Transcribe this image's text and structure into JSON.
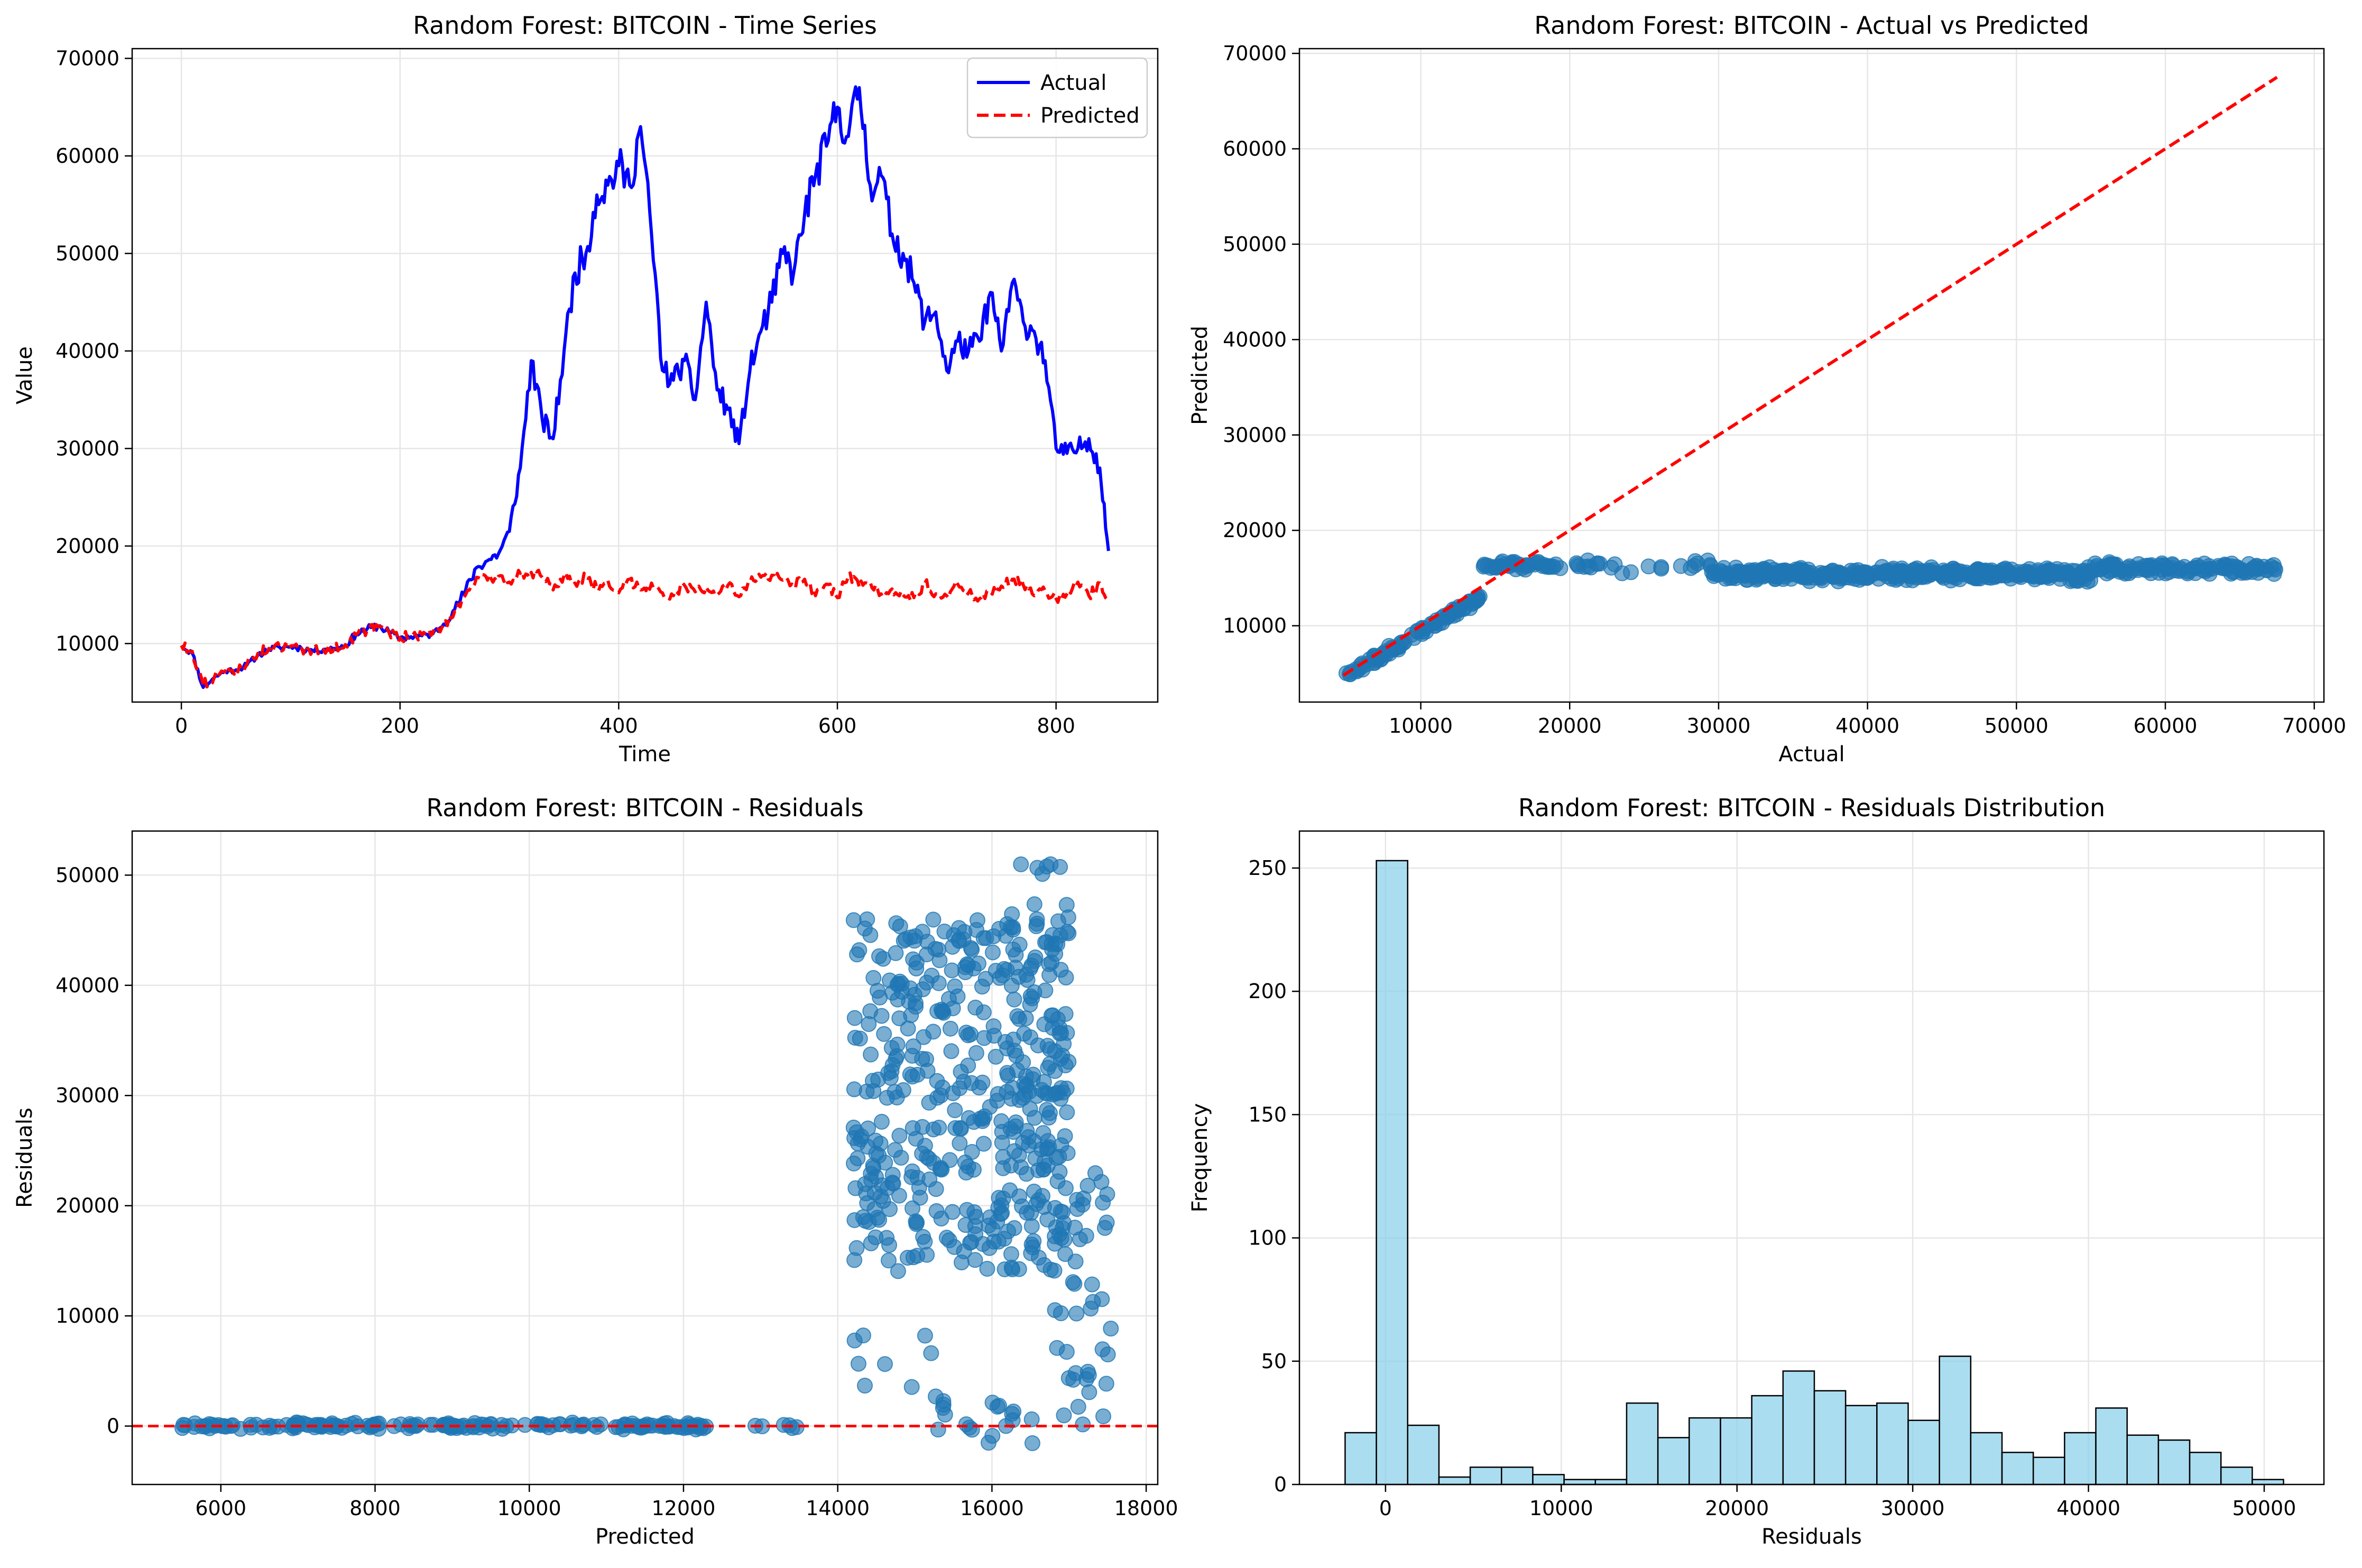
{
  "chart_data": [
    {
      "type": "line",
      "title": "Random Forest: BITCOIN - Time Series",
      "xlabel": "Time",
      "ylabel": "Value",
      "xlim": [
        -45,
        893
      ],
      "ylim": [
        4000,
        71000
      ],
      "xticks": [
        0,
        200,
        400,
        600,
        800
      ],
      "yticks": [
        10000,
        20000,
        30000,
        40000,
        50000,
        60000,
        70000
      ],
      "grid": true,
      "legend": "top-right",
      "series": [
        {
          "name": "Actual",
          "color": "#0000ff",
          "style": "solid",
          "x": [
            0,
            10,
            20,
            30,
            40,
            50,
            60,
            70,
            80,
            90,
            100,
            110,
            120,
            130,
            140,
            150,
            160,
            170,
            180,
            190,
            200,
            210,
            220,
            230,
            240,
            250,
            260,
            270,
            280,
            290,
            300,
            310,
            320,
            330,
            340,
            350,
            360,
            370,
            380,
            390,
            400,
            410,
            420,
            430,
            440,
            450,
            460,
            470,
            480,
            490,
            500,
            510,
            520,
            530,
            540,
            550,
            560,
            570,
            580,
            590,
            600,
            610,
            620,
            630,
            640,
            650,
            660,
            670,
            680,
            690,
            700,
            710,
            720,
            730,
            740,
            750,
            760,
            770,
            780,
            790,
            800,
            810,
            820,
            830,
            840,
            848
          ],
          "values": [
            9800,
            9000,
            5500,
            6500,
            7200,
            7300,
            7800,
            8800,
            9400,
            9600,
            9700,
            9500,
            9300,
            9400,
            9500,
            9800,
            11000,
            11500,
            11800,
            11200,
            10600,
            10700,
            10800,
            11000,
            12000,
            13500,
            15500,
            17800,
            18500,
            19200,
            21500,
            28000,
            39000,
            33000,
            31000,
            40000,
            48000,
            50000,
            56000,
            57000,
            59000,
            57000,
            63000,
            52000,
            38000,
            37000,
            39000,
            35000,
            45000,
            36000,
            34000,
            30500,
            38000,
            42000,
            45000,
            50000,
            48000,
            54000,
            58000,
            61000,
            65000,
            62000,
            67000,
            57000,
            58000,
            52000,
            50000,
            47000,
            43000,
            44000,
            38000,
            41000,
            40000,
            41000,
            46000,
            40000,
            47000,
            43000,
            42000,
            39000,
            30000,
            29500,
            30000,
            31000,
            28000,
            19500
          ]
        },
        {
          "name": "Predicted",
          "color": "#ff0000",
          "style": "dashed",
          "x": [
            0,
            10,
            20,
            30,
            40,
            50,
            60,
            70,
            80,
            90,
            100,
            110,
            120,
            130,
            140,
            150,
            160,
            170,
            180,
            190,
            200,
            210,
            220,
            230,
            240,
            250,
            260,
            270,
            280,
            290,
            300,
            310,
            320,
            330,
            340,
            350,
            360,
            370,
            380,
            390,
            400,
            410,
            420,
            430,
            440,
            450,
            460,
            470,
            480,
            490,
            500,
            510,
            520,
            530,
            540,
            550,
            560,
            570,
            580,
            590,
            600,
            610,
            620,
            630,
            640,
            650,
            660,
            670,
            680,
            690,
            700,
            710,
            720,
            730,
            740,
            750,
            760,
            770,
            780,
            790,
            800,
            810,
            820,
            830,
            840,
            848
          ],
          "values": [
            9800,
            9200,
            5800,
            6500,
            7100,
            7300,
            7900,
            9000,
            9500,
            9600,
            9700,
            9500,
            9300,
            9400,
            9500,
            9900,
            10900,
            11400,
            11700,
            11100,
            10600,
            10800,
            10900,
            11100,
            11900,
            13300,
            15000,
            16800,
            16500,
            16900,
            16300,
            17200,
            17300,
            16800,
            15500,
            17000,
            16200,
            16800,
            15700,
            16500,
            15200,
            16600,
            15500,
            16200,
            15200,
            14900,
            16000,
            15300,
            15800,
            15000,
            16000,
            14800,
            16200,
            16800,
            17000,
            16500,
            15900,
            16600,
            14900,
            16100,
            14700,
            16900,
            15800,
            16300,
            15100,
            15600,
            15000,
            14700,
            16200,
            15100,
            14900,
            16100,
            15200,
            14600,
            15300,
            15900,
            16600,
            16000,
            14900,
            15400,
            14600,
            15100,
            16300,
            14900,
            16200,
            14600
          ]
        }
      ]
    },
    {
      "type": "scatter",
      "title": "Random Forest: BITCOIN - Actual vs Predicted",
      "xlabel": "Actual",
      "ylabel": "Predicted",
      "xlim": [
        1850,
        70650
      ],
      "ylim": [
        2000,
        70500
      ],
      "xticks": [
        10000,
        20000,
        30000,
        40000,
        50000,
        60000,
        70000
      ],
      "yticks": [
        10000,
        20000,
        30000,
        40000,
        50000,
        60000,
        70000
      ],
      "grid": true,
      "point_color": "#1f77b4",
      "reference_line": {
        "color": "#ff0000",
        "style": "dashed",
        "x": [
          4800,
          67500
        ],
        "y": [
          4800,
          67500
        ]
      },
      "segments": [
        {
          "x_range": [
            4800,
            14000
          ],
          "slope": 0.9,
          "offset": 0,
          "noise": 600,
          "n": 90
        },
        {
          "x_range": [
            14000,
            19500
          ],
          "slope": 0.0,
          "offset": 16300,
          "noise": 500,
          "n": 40
        },
        {
          "x_range": [
            20000,
            29500
          ],
          "slope": 0.0,
          "offset": 16300,
          "noise": 900,
          "n": 25
        },
        {
          "x_range": [
            29500,
            55000
          ],
          "slope": 0.0,
          "offset": 15400,
          "noise": 800,
          "n": 400
        },
        {
          "x_range": [
            55000,
            67500
          ],
          "slope": 0.0,
          "offset": 16000,
          "noise": 700,
          "n": 120
        }
      ]
    },
    {
      "type": "scatter",
      "title": "Random Forest: BITCOIN - Residuals",
      "xlabel": "Predicted",
      "ylabel": "Residuals",
      "xlim": [
        4850,
        18150
      ],
      "ylim": [
        -5300,
        54000
      ],
      "xticks": [
        6000,
        8000,
        10000,
        12000,
        14000,
        16000,
        18000
      ],
      "yticks": [
        0,
        10000,
        20000,
        30000,
        40000,
        50000
      ],
      "grid": true,
      "point_color": "#1f77b4",
      "reference_line": {
        "color": "#ff0000",
        "style": "dashed",
        "y": 0
      },
      "segments": [
        {
          "x_range": [
            5500,
            12300
          ],
          "y_center": 0,
          "noise": 350,
          "n": 170
        },
        {
          "x_range": [
            12900,
            13500
          ],
          "y_center": 0,
          "noise": 200,
          "n": 6
        },
        {
          "x_range": [
            14200,
            17000
          ],
          "y_range": [
            14000,
            46000
          ],
          "n": 420
        },
        {
          "x_range": [
            16200,
            17000
          ],
          "y_range": [
            14000,
            51000
          ],
          "n": 60
        },
        {
          "x_range": [
            14200,
            15300
          ],
          "y_range": [
            3000,
            8500
          ],
          "n": 8
        },
        {
          "x_range": [
            15200,
            16600
          ],
          "y_range": [
            -1800,
            2800
          ],
          "n": 20
        },
        {
          "x_range": [
            16800,
            17550
          ],
          "y_range": [
            0,
            23500
          ],
          "n": 45
        }
      ]
    },
    {
      "type": "bar",
      "title": "Random Forest: BITCOIN - Residuals Distribution",
      "xlabel": "Residuals",
      "ylabel": "Frequency",
      "xlim": [
        -4900,
        53400
      ],
      "ylim": [
        0,
        265
      ],
      "xticks": [
        0,
        10000,
        20000,
        30000,
        40000,
        50000
      ],
      "yticks": [
        0,
        50,
        100,
        150,
        200,
        250
      ],
      "grid": true,
      "bar_color": "#87ceeb",
      "edge_color": "#000000",
      "bin_start": -2300,
      "bin_width": 1780,
      "values": [
        21,
        253,
        24,
        3,
        7,
        7,
        4,
        2,
        2,
        33,
        19,
        27,
        27,
        36,
        46,
        38,
        32,
        33,
        26,
        52,
        21,
        13,
        11,
        21,
        31,
        20,
        18,
        13,
        7,
        2
      ]
    }
  ]
}
